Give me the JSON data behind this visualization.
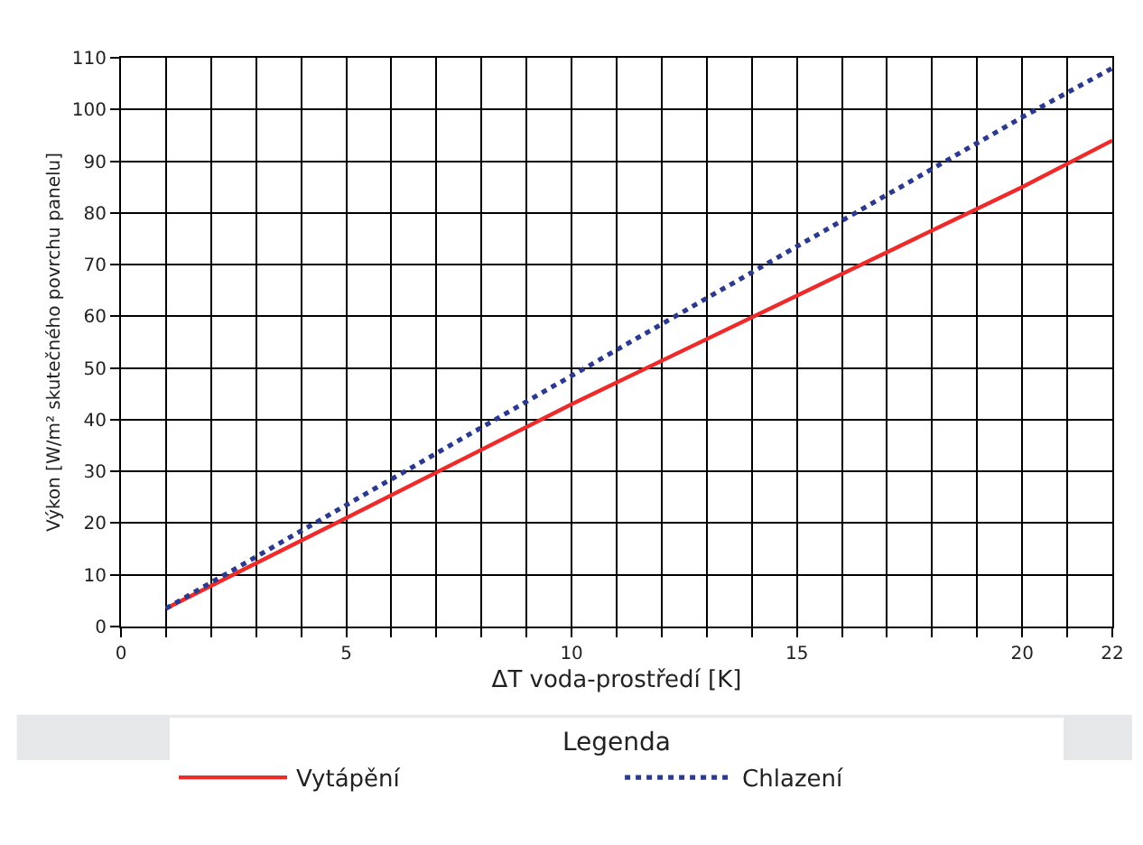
{
  "chart_data": {
    "type": "line",
    "xlabel": "ΔT voda-prostředí [K]",
    "ylabel": "Výkon [W/m² skutečného povrchu panelu]",
    "legend_title": "Legenda",
    "x": [
      1,
      5,
      10,
      15,
      20,
      22
    ],
    "series": [
      {
        "name": "Vytápění",
        "color": "#ee2b2b",
        "line_style": "solid",
        "values": [
          3.5,
          21,
          43,
          64,
          85,
          94
        ]
      },
      {
        "name": "Chlazení",
        "color": "#2b3a8f",
        "line_style": "dotted",
        "values": [
          3.5,
          23.5,
          48.5,
          73.5,
          98.5,
          108
        ]
      }
    ],
    "xlim": [
      0,
      22
    ],
    "xticks": [
      0,
      {
        "value": 1,
        "label": null
      },
      {
        "value": 2,
        "label": null
      },
      {
        "value": 3,
        "label": null
      },
      {
        "value": 4,
        "label": null
      },
      5,
      {
        "value": 6,
        "label": null
      },
      {
        "value": 7,
        "label": null
      },
      {
        "value": 8,
        "label": null
      },
      {
        "value": 9,
        "label": null
      },
      10,
      {
        "value": 11,
        "label": null
      },
      {
        "value": 12,
        "label": null
      },
      {
        "value": 13,
        "label": null
      },
      {
        "value": 14,
        "label": null
      },
      15,
      {
        "value": 16,
        "label": null
      },
      {
        "value": 17,
        "label": null
      },
      {
        "value": 18,
        "label": null
      },
      {
        "value": 19,
        "label": null
      },
      20,
      {
        "value": 21,
        "label": null
      },
      22
    ],
    "ylim": [
      0,
      110
    ],
    "yticks": [
      0,
      10,
      20,
      30,
      40,
      50,
      60,
      70,
      80,
      90,
      100,
      110
    ],
    "grid": true,
    "legend": "bottom",
    "marker": "none"
  }
}
